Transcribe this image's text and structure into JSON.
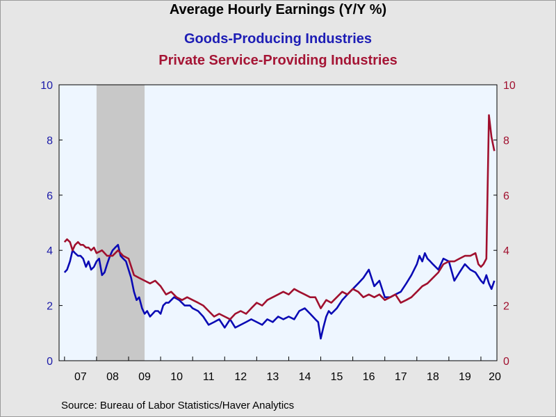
{
  "header": {
    "title": "Average Hourly Earnings (Y/Y %)",
    "series1_title": "Goods-Producing Industries",
    "series2_title": "Private Service-Providing Industries"
  },
  "footer": {
    "source": "Source:  Bureau of Labor Statistics/Haver Analytics"
  },
  "colors": {
    "goods": "#0a0ab4",
    "services": "#a0102e",
    "left_axis": "#1a1aa8",
    "right_axis": "#a0102e",
    "plot_bg": "#eef6ff",
    "recession": "#c8c8c8"
  },
  "chart_data": {
    "type": "line",
    "title": "Average Hourly Earnings (Y/Y %)",
    "xlabel": "",
    "ylabel_left": "",
    "ylabel_right": "",
    "x_tick_labels": [
      "07",
      "08",
      "09",
      "10",
      "11",
      "12",
      "13",
      "14",
      "15",
      "16",
      "17",
      "18",
      "19",
      "20"
    ],
    "ylim": [
      0,
      10
    ],
    "y_ticks": [
      0,
      2,
      4,
      6,
      8,
      10
    ],
    "grid": false,
    "recession_shading": {
      "start": 2008.0,
      "end": 2009.5
    },
    "series": [
      {
        "name": "Goods-Producing Industries",
        "axis": "left",
        "x": [
          2007.0,
          2007.08,
          2007.17,
          2007.25,
          2007.33,
          2007.42,
          2007.5,
          2007.58,
          2007.67,
          2007.75,
          2007.83,
          2007.92,
          2008.0,
          2008.08,
          2008.17,
          2008.25,
          2008.33,
          2008.42,
          2008.5,
          2008.58,
          2008.67,
          2008.75,
          2008.83,
          2008.92,
          2009.0,
          2009.08,
          2009.17,
          2009.25,
          2009.33,
          2009.42,
          2009.5,
          2009.58,
          2009.67,
          2009.75,
          2009.83,
          2009.92,
          2010.0,
          2010.08,
          2010.17,
          2010.25,
          2010.42,
          2010.58,
          2010.75,
          2010.92,
          2011.0,
          2011.17,
          2011.33,
          2011.5,
          2011.67,
          2011.83,
          2012.0,
          2012.17,
          2012.33,
          2012.5,
          2012.67,
          2012.83,
          2013.0,
          2013.17,
          2013.33,
          2013.5,
          2013.67,
          2013.83,
          2014.0,
          2014.17,
          2014.33,
          2014.5,
          2014.67,
          2014.83,
          2014.92,
          2015.0,
          2015.08,
          2015.17,
          2015.25,
          2015.33,
          2015.5,
          2015.67,
          2015.83,
          2016.0,
          2016.17,
          2016.33,
          2016.5,
          2016.67,
          2016.83,
          2017.0,
          2017.17,
          2017.33,
          2017.5,
          2017.67,
          2017.83,
          2018.0,
          2018.08,
          2018.17,
          2018.25,
          2018.33,
          2018.42,
          2018.5,
          2018.67,
          2018.83,
          2019.0,
          2019.17,
          2019.33,
          2019.5,
          2019.67,
          2019.83,
          2020.0,
          2020.08,
          2020.17,
          2020.25,
          2020.33,
          2020.42
        ],
        "values": [
          3.2,
          3.3,
          3.6,
          4.0,
          3.9,
          3.8,
          3.8,
          3.7,
          3.4,
          3.6,
          3.3,
          3.4,
          3.6,
          3.7,
          3.1,
          3.2,
          3.5,
          3.8,
          4.0,
          4.1,
          4.2,
          3.8,
          3.7,
          3.6,
          3.3,
          3.0,
          2.5,
          2.2,
          2.3,
          1.9,
          1.7,
          1.8,
          1.6,
          1.7,
          1.8,
          1.8,
          1.7,
          2.0,
          2.1,
          2.1,
          2.3,
          2.2,
          2.0,
          2.0,
          1.9,
          1.8,
          1.6,
          1.3,
          1.4,
          1.5,
          1.2,
          1.5,
          1.2,
          1.3,
          1.4,
          1.5,
          1.4,
          1.3,
          1.5,
          1.4,
          1.6,
          1.5,
          1.6,
          1.5,
          1.8,
          1.9,
          1.7,
          1.5,
          1.4,
          0.8,
          1.2,
          1.6,
          1.8,
          1.7,
          1.9,
          2.2,
          2.4,
          2.6,
          2.8,
          3.0,
          3.3,
          2.7,
          2.9,
          2.3,
          2.3,
          2.4,
          2.5,
          2.8,
          3.1,
          3.5,
          3.8,
          3.6,
          3.9,
          3.7,
          3.6,
          3.5,
          3.3,
          3.7,
          3.6,
          2.9,
          3.2,
          3.5,
          3.3,
          3.2,
          2.9,
          2.8,
          3.1,
          2.8,
          2.6,
          2.9
        ]
      },
      {
        "name": "Private Service-Providing Industries",
        "axis": "right",
        "x": [
          2007.0,
          2007.08,
          2007.17,
          2007.25,
          2007.33,
          2007.42,
          2007.5,
          2007.58,
          2007.67,
          2007.75,
          2007.83,
          2007.92,
          2008.0,
          2008.17,
          2008.33,
          2008.5,
          2008.67,
          2008.83,
          2009.0,
          2009.17,
          2009.33,
          2009.5,
          2009.67,
          2009.83,
          2010.0,
          2010.17,
          2010.33,
          2010.5,
          2010.67,
          2010.83,
          2011.0,
          2011.17,
          2011.33,
          2011.5,
          2011.67,
          2011.83,
          2012.0,
          2012.17,
          2012.33,
          2012.5,
          2012.67,
          2012.83,
          2013.0,
          2013.17,
          2013.33,
          2013.5,
          2013.67,
          2013.83,
          2014.0,
          2014.17,
          2014.33,
          2014.5,
          2014.67,
          2014.83,
          2015.0,
          2015.17,
          2015.33,
          2015.5,
          2015.67,
          2015.83,
          2016.0,
          2016.17,
          2016.33,
          2016.5,
          2016.67,
          2016.83,
          2017.0,
          2017.17,
          2017.33,
          2017.5,
          2017.67,
          2017.83,
          2018.0,
          2018.17,
          2018.33,
          2018.5,
          2018.67,
          2018.83,
          2019.0,
          2019.17,
          2019.33,
          2019.5,
          2019.67,
          2019.83,
          2019.92,
          2020.0,
          2020.08,
          2020.17,
          2020.25,
          2020.33,
          2020.42
        ],
        "values": [
          4.3,
          4.4,
          4.3,
          4.0,
          4.2,
          4.3,
          4.2,
          4.2,
          4.1,
          4.1,
          4.0,
          4.1,
          3.9,
          4.0,
          3.8,
          3.8,
          4.0,
          3.8,
          3.7,
          3.1,
          3.0,
          2.9,
          2.8,
          2.9,
          2.7,
          2.4,
          2.5,
          2.3,
          2.2,
          2.3,
          2.2,
          2.1,
          2.0,
          1.8,
          1.6,
          1.7,
          1.6,
          1.5,
          1.7,
          1.8,
          1.7,
          1.9,
          2.1,
          2.0,
          2.2,
          2.3,
          2.4,
          2.5,
          2.4,
          2.6,
          2.5,
          2.4,
          2.3,
          2.3,
          1.9,
          2.2,
          2.1,
          2.3,
          2.5,
          2.4,
          2.6,
          2.5,
          2.3,
          2.4,
          2.3,
          2.4,
          2.2,
          2.3,
          2.4,
          2.1,
          2.2,
          2.3,
          2.5,
          2.7,
          2.8,
          3.0,
          3.2,
          3.5,
          3.6,
          3.6,
          3.7,
          3.8,
          3.8,
          3.9,
          3.5,
          3.4,
          3.5,
          3.7,
          8.9,
          8.1,
          7.6
        ]
      }
    ]
  }
}
